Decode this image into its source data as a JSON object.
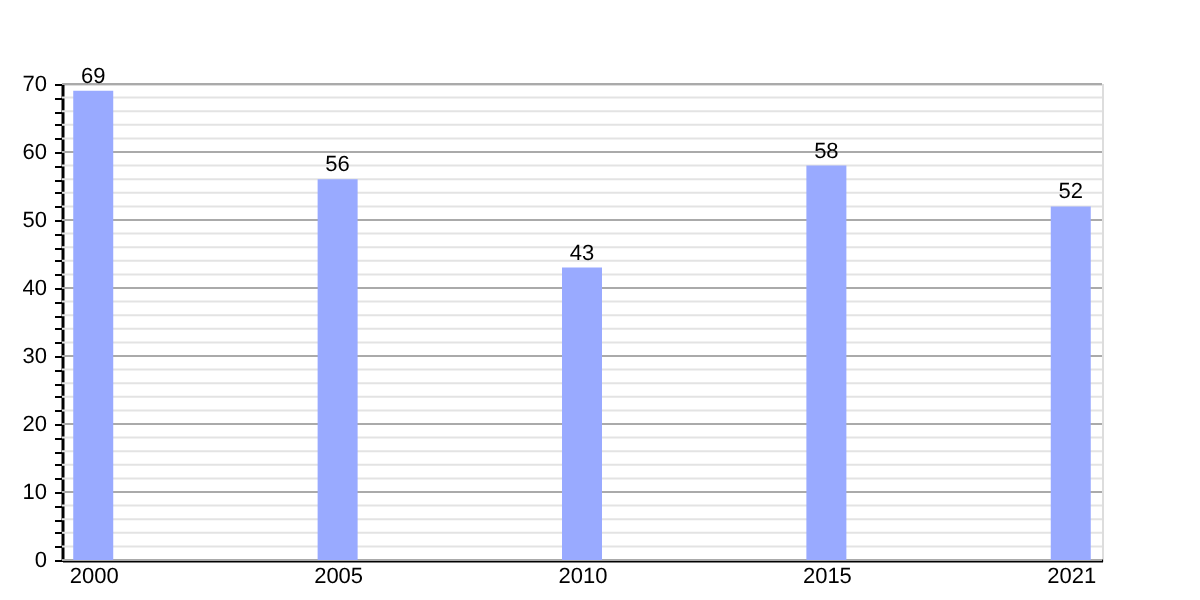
{
  "chart_data": {
    "type": "bar",
    "categories": [
      "2000",
      "2005",
      "2010",
      "2015",
      "2021"
    ],
    "values": [
      69,
      56,
      43,
      58,
      52
    ],
    "color": "#99aaff",
    "data_labels": true,
    "ylim": [
      0,
      70
    ],
    "yticks": [
      0,
      {
        "value": 2,
        "label": null
      },
      {
        "value": 4,
        "label": null
      },
      {
        "value": 6,
        "label": null
      },
      {
        "value": 8,
        "label": null
      },
      10,
      {
        "value": 12,
        "label": null
      },
      {
        "value": 14,
        "label": null
      },
      {
        "value": 16,
        "label": null
      },
      {
        "value": 18,
        "label": null
      },
      20,
      {
        "value": 22,
        "label": null
      },
      {
        "value": 24,
        "label": null
      },
      {
        "value": 26,
        "label": null
      },
      {
        "value": 28,
        "label": null
      },
      30,
      {
        "value": 32,
        "label": null
      },
      {
        "value": 34,
        "label": null
      },
      {
        "value": 36,
        "label": null
      },
      {
        "value": 38,
        "label": null
      },
      40,
      {
        "value": 42,
        "label": null
      },
      {
        "value": 44,
        "label": null
      },
      {
        "value": 46,
        "label": null
      },
      {
        "value": 48,
        "label": null
      },
      50,
      {
        "value": 52,
        "label": null
      },
      {
        "value": 54,
        "label": null
      },
      {
        "value": 56,
        "label": null
      },
      {
        "value": 58,
        "label": null
      },
      60,
      {
        "value": 62,
        "label": null
      },
      {
        "value": 64,
        "label": null
      },
      {
        "value": 66,
        "label": null
      },
      {
        "value": 68,
        "label": null
      },
      70
    ],
    "grid": true
  }
}
